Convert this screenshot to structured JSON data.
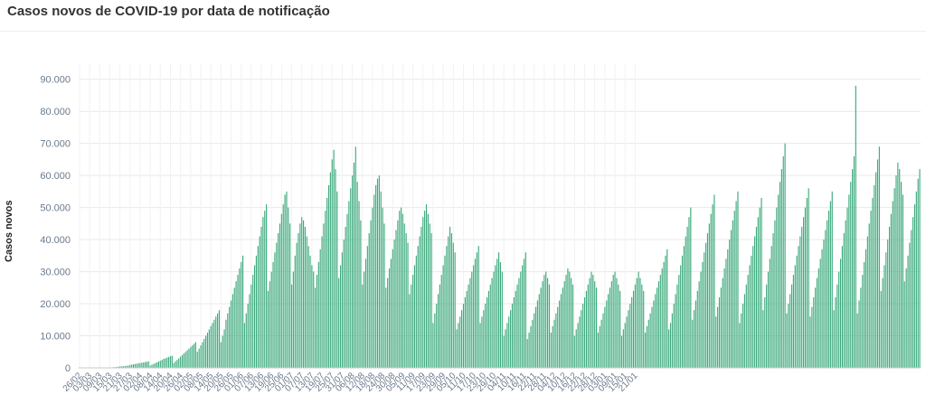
{
  "chart_data": {
    "type": "bar",
    "title": "Casos novos de COVID-19 por data de notificação",
    "ylabel": "Casos novos",
    "xlabel": "",
    "ylim": [
      0,
      95000
    ],
    "yticks": [
      0,
      10000,
      20000,
      30000,
      40000,
      50000,
      60000,
      70000,
      80000,
      90000
    ],
    "ytick_labels": [
      "0",
      "10.000",
      "20.000",
      "30.000",
      "40.000",
      "50.000",
      "60.000",
      "70.000",
      "80.000",
      "90.000"
    ],
    "grid": true,
    "bar_color": "#3daa7d",
    "start_date": "26/02",
    "x_tick_labels": [
      "26/02",
      "03/03",
      "09/03",
      "15/03",
      "21/03",
      "27/03",
      "02/04",
      "08/04",
      "14/04",
      "20/04",
      "26/04",
      "02/05",
      "08/05",
      "14/05",
      "20/05",
      "26/05",
      "01/06",
      "07/06",
      "13/06",
      "19/06",
      "25/06",
      "01/07",
      "07/07",
      "13/07",
      "19/07",
      "25/07",
      "31/07",
      "06/08",
      "12/08",
      "18/08",
      "24/08",
      "30/08",
      "05/09",
      "11/09",
      "17/09",
      "23/09",
      "29/09",
      "05/10",
      "11/10",
      "17/10",
      "23/10",
      "29/10",
      "04/11",
      "10/11",
      "16/11",
      "22/11",
      "28/11",
      "04/12",
      "10/12",
      "16/12",
      "22/12",
      "28/12",
      "03/01",
      "09/01",
      "15/01",
      "21/01"
    ],
    "values": [
      1,
      0,
      0,
      1,
      1,
      1,
      3,
      3,
      8,
      10,
      13,
      0,
      12,
      25,
      34,
      40,
      50,
      60,
      80,
      150,
      200,
      230,
      270,
      350,
      420,
      480,
      520,
      600,
      650,
      700,
      900,
      1000,
      1100,
      1200,
      1300,
      1400,
      1500,
      1600,
      1700,
      1800,
      1900,
      2000,
      700,
      1000,
      1200,
      1500,
      1700,
      2000,
      2200,
      2500,
      2800,
      3000,
      3200,
      3400,
      3600,
      3800,
      1500,
      2000,
      2500,
      3000,
      3500,
      4000,
      4500,
      5000,
      5500,
      6000,
      6500,
      7000,
      7500,
      8000,
      5000,
      6000,
      7000,
      8000,
      9000,
      10000,
      11000,
      12000,
      13000,
      14000,
      15000,
      16000,
      17000,
      18000,
      8000,
      10000,
      12000,
      15000,
      17000,
      19000,
      21000,
      23000,
      25000,
      27000,
      29000,
      31000,
      33000,
      35000,
      14000,
      17000,
      20000,
      23000,
      26000,
      29000,
      32000,
      35000,
      38000,
      41000,
      44000,
      47000,
      49000,
      51000,
      24000,
      27000,
      30000,
      33000,
      36000,
      39000,
      42000,
      45000,
      48000,
      51000,
      54000,
      55000,
      50000,
      45000,
      26000,
      30000,
      35000,
      39000,
      42000,
      45000,
      47000,
      46000,
      44000,
      41000,
      38000,
      35000,
      32000,
      30000,
      25000,
      29000,
      33000,
      37000,
      41000,
      45000,
      49000,
      53000,
      57000,
      61000,
      65000,
      68000,
      62000,
      55000,
      28000,
      32000,
      36000,
      40000,
      44000,
      48000,
      52000,
      56000,
      60000,
      64000,
      69000,
      58000,
      52000,
      46000,
      26000,
      30000,
      34000,
      38000,
      42000,
      46000,
      50000,
      54000,
      57000,
      59000,
      60000,
      55000,
      50000,
      45000,
      25000,
      28000,
      31000,
      34000,
      37000,
      40000,
      43000,
      46000,
      49000,
      50000,
      48000,
      45000,
      42000,
      39000,
      23000,
      26000,
      29000,
      32000,
      35000,
      38000,
      41000,
      44000,
      47000,
      49000,
      51000,
      48000,
      45000,
      42000,
      14000,
      17000,
      20000,
      23000,
      26000,
      29000,
      32000,
      35000,
      38000,
      41000,
      44000,
      42000,
      39000,
      36000,
      12000,
      14000,
      16000,
      18000,
      20000,
      22000,
      24000,
      26000,
      28000,
      30000,
      32000,
      34000,
      36000,
      38000,
      14000,
      16000,
      18000,
      20000,
      22000,
      24000,
      26000,
      28000,
      30000,
      32000,
      34000,
      36000,
      33000,
      30000,
      10000,
      12000,
      14000,
      16000,
      18000,
      20000,
      22000,
      24000,
      26000,
      28000,
      30000,
      32000,
      34000,
      36000,
      9000,
      11000,
      13000,
      15000,
      17000,
      19000,
      21000,
      23000,
      25000,
      27000,
      29000,
      30000,
      28000,
      26000,
      11000,
      13000,
      15000,
      17000,
      19000,
      21000,
      23000,
      25000,
      27000,
      29000,
      31000,
      30000,
      28000,
      26000,
      10000,
      12000,
      14000,
      16000,
      18000,
      20000,
      22000,
      24000,
      26000,
      28000,
      30000,
      29000,
      27000,
      25000,
      11000,
      13000,
      15000,
      17000,
      19000,
      21000,
      23000,
      25000,
      27000,
      29000,
      30000,
      28000,
      26000,
      24000,
      10000,
      12000,
      14000,
      16000,
      18000,
      20000,
      22000,
      24000,
      26000,
      28000,
      30000,
      28000,
      26000,
      24000,
      11000,
      13000,
      15000,
      17000,
      19000,
      21000,
      23000,
      25000,
      27000,
      29000,
      31000,
      33000,
      35000,
      37000,
      12000,
      14000,
      17000,
      20000,
      23000,
      26000,
      29000,
      32000,
      35000,
      38000,
      41000,
      44000,
      47000,
      50000,
      15000,
      18000,
      21000,
      24000,
      27000,
      30000,
      33000,
      36000,
      39000,
      42000,
      45000,
      48000,
      51000,
      54000,
      16000,
      19000,
      22000,
      25000,
      28000,
      31000,
      34000,
      37000,
      40000,
      43000,
      46000,
      49000,
      52000,
      55000,
      14000,
      17000,
      20000,
      23000,
      26000,
      29000,
      32000,
      35000,
      38000,
      41000,
      44000,
      47000,
      50000,
      53000,
      18000,
      22000,
      26000,
      30000,
      34000,
      38000,
      42000,
      46000,
      50000,
      54000,
      58000,
      62000,
      66000,
      70000,
      17000,
      20000,
      23000,
      26000,
      29000,
      32000,
      35000,
      38000,
      41000,
      44000,
      47000,
      50000,
      53000,
      56000,
      16000,
      19000,
      22000,
      25000,
      28000,
      31000,
      34000,
      37000,
      40000,
      43000,
      46000,
      49000,
      52000,
      55000,
      18000,
      22000,
      26000,
      30000,
      34000,
      38000,
      42000,
      46000,
      50000,
      54000,
      58000,
      62000,
      66000,
      88000,
      17000,
      21000,
      25000,
      29000,
      33000,
      37000,
      41000,
      45000,
      49000,
      53000,
      57000,
      61000,
      65000,
      69000,
      24000,
      28000,
      32000,
      36000,
      40000,
      44000,
      48000,
      52000,
      56000,
      60000,
      64000,
      62000,
      58000,
      54000,
      27000,
      31000,
      35000,
      39000,
      43000,
      47000,
      51000,
      55000,
      59000,
      62000
    ]
  }
}
